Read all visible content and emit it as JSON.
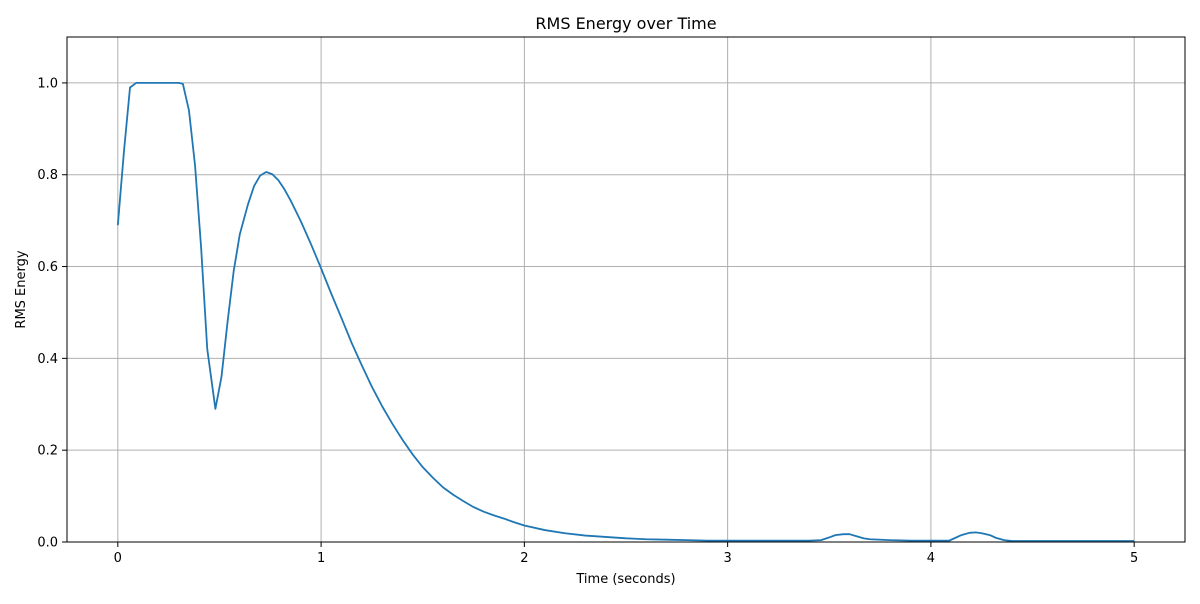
{
  "chart_data": {
    "type": "line",
    "title": "RMS Energy over Time",
    "xlabel": "Time (seconds)",
    "ylabel": "RMS Energy",
    "xlim": [
      -0.25,
      5.25
    ],
    "ylim": [
      0.0,
      1.1
    ],
    "xticks": [
      0,
      1,
      2,
      3,
      4,
      5
    ],
    "xtick_labels": [
      "0",
      "1",
      "2",
      "3",
      "4",
      "5"
    ],
    "yticks": [
      0.0,
      0.2,
      0.4,
      0.6,
      0.8,
      1.0
    ],
    "ytick_labels": [
      "0.0",
      "0.2",
      "0.4",
      "0.6",
      "0.8",
      "1.0"
    ],
    "grid": true,
    "line_color": "#1f77b4",
    "series": [
      {
        "x": [
          0.0,
          0.03,
          0.06,
          0.09,
          0.12,
          0.15,
          0.18,
          0.21,
          0.24,
          0.27,
          0.3,
          0.32,
          0.35,
          0.38,
          0.41,
          0.44,
          0.48,
          0.51,
          0.54,
          0.57,
          0.6,
          0.64,
          0.67,
          0.7,
          0.73,
          0.76,
          0.79,
          0.82,
          0.85,
          0.9,
          0.95,
          1.0,
          1.05,
          1.1,
          1.15,
          1.2,
          1.25,
          1.3,
          1.35,
          1.4,
          1.45,
          1.5,
          1.55,
          1.6,
          1.65,
          1.7,
          1.75,
          1.8,
          1.85,
          1.9,
          1.95,
          2.0,
          2.1,
          2.2,
          2.3,
          2.4,
          2.5,
          2.6,
          2.7,
          2.8,
          2.9,
          3.0,
          3.1,
          3.2,
          3.3,
          3.4,
          3.46,
          3.5,
          3.53,
          3.57,
          3.6,
          3.63,
          3.67,
          3.7,
          3.8,
          3.9,
          4.0,
          4.05,
          4.09,
          4.12,
          4.15,
          4.19,
          4.22,
          4.25,
          4.29,
          4.32,
          4.36,
          4.4,
          4.5,
          4.6,
          4.7,
          4.8,
          4.9,
          5.0
        ],
        "y": [
          0.69,
          0.85,
          0.99,
          1.0,
          1.0,
          1.0,
          1.0,
          1.0,
          1.0,
          1.0,
          1.0,
          0.998,
          0.94,
          0.82,
          0.64,
          0.42,
          0.29,
          0.36,
          0.48,
          0.59,
          0.67,
          0.735,
          0.775,
          0.798,
          0.806,
          0.801,
          0.788,
          0.768,
          0.744,
          0.699,
          0.649,
          0.596,
          0.541,
          0.488,
          0.434,
          0.385,
          0.338,
          0.296,
          0.258,
          0.223,
          0.191,
          0.163,
          0.14,
          0.119,
          0.103,
          0.089,
          0.076,
          0.066,
          0.058,
          0.051,
          0.043,
          0.036,
          0.026,
          0.019,
          0.014,
          0.011,
          0.008,
          0.006,
          0.005,
          0.004,
          0.003,
          0.003,
          0.003,
          0.003,
          0.003,
          0.003,
          0.004,
          0.01,
          0.015,
          0.017,
          0.017,
          0.013,
          0.008,
          0.006,
          0.004,
          0.003,
          0.003,
          0.003,
          0.003,
          0.009,
          0.015,
          0.02,
          0.021,
          0.019,
          0.015,
          0.009,
          0.004,
          0.002,
          0.002,
          0.002,
          0.002,
          0.002,
          0.002,
          0.002
        ]
      }
    ]
  }
}
